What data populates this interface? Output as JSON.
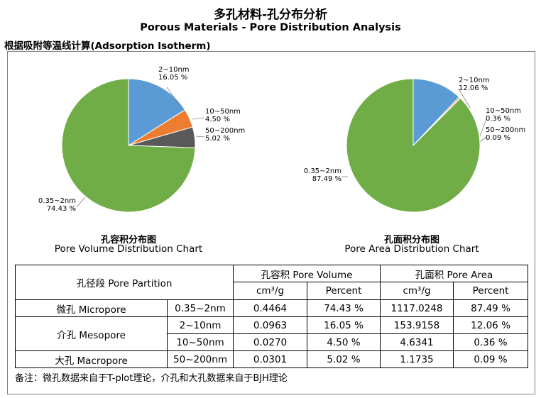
{
  "header": {
    "title_cn": "多孔材料-孔分布分析",
    "title_en": "Porous Materials - Pore Distribution Analysis",
    "section": "根据吸附等温线计算(Adsorption Isotherm)"
  },
  "colors": {
    "micropore": "#70ad47",
    "mesopore_2_10": "#5b9bd5",
    "mesopore_10_50": "#ed7d31",
    "macropore": "#595959"
  },
  "chart_data": [
    {
      "type": "pie",
      "title": "孔容积分布图",
      "subtitle": "Pore Volume Distribution Chart",
      "slices": [
        {
          "label": "2~10nm",
          "value": 16.05,
          "display": "16.05 %",
          "color": "#5b9bd5"
        },
        {
          "label": "10~50nm",
          "value": 4.5,
          "display": "4.50 %",
          "color": "#ed7d31"
        },
        {
          "label": "50~200nm",
          "value": 5.02,
          "display": "5.02 %",
          "color": "#595959"
        },
        {
          "label": "0.35~2nm",
          "value": 74.43,
          "display": "74.43 %",
          "color": "#70ad47"
        }
      ]
    },
    {
      "type": "pie",
      "title": "孔面积分布图",
      "subtitle": "Pore Area Distribution Chart",
      "slices": [
        {
          "label": "2~10nm",
          "value": 12.06,
          "display": "12.06 %",
          "color": "#5b9bd5"
        },
        {
          "label": "10~50nm",
          "value": 0.36,
          "display": "0.36 %",
          "color": "#ed7d31"
        },
        {
          "label": "50~200nm",
          "value": 0.09,
          "display": "0.09 %",
          "color": "#595959"
        },
        {
          "label": "0.35~2nm",
          "value": 87.49,
          "display": "87.49 %",
          "color": "#70ad47"
        }
      ]
    }
  ],
  "table": {
    "partition_header": "孔径段 Pore Partition",
    "volume_header": "孔容积 Pore Volume",
    "area_header": "孔面积 Pore Area",
    "unit_volume": "cm³/g",
    "unit_area": "cm³/g",
    "percent": "Percent",
    "rows": [
      {
        "category": "微孔 Micropore",
        "range": "0.35~2nm",
        "volume": "0.4464",
        "volume_pct": "74.43 %",
        "area": "1117.0248",
        "area_pct": "87.49 %"
      },
      {
        "category": "介孔 Mesopore",
        "range": "2~10nm",
        "volume": "0.0963",
        "volume_pct": "16.05 %",
        "area": "153.9158",
        "area_pct": "12.06 %"
      },
      {
        "category": "",
        "range": "10~50nm",
        "volume": "0.0270",
        "volume_pct": "4.50 %",
        "area": "4.6341",
        "area_pct": "0.36 %"
      },
      {
        "category": "大孔 Macropore",
        "range": "50~200nm",
        "volume": "0.0301",
        "volume_pct": "5.02 %",
        "area": "1.1735",
        "area_pct": "0.09 %"
      }
    ]
  },
  "note": "备注：微孔数据来自于T-plot理论，介孔和大孔数据来自于BJH理论"
}
